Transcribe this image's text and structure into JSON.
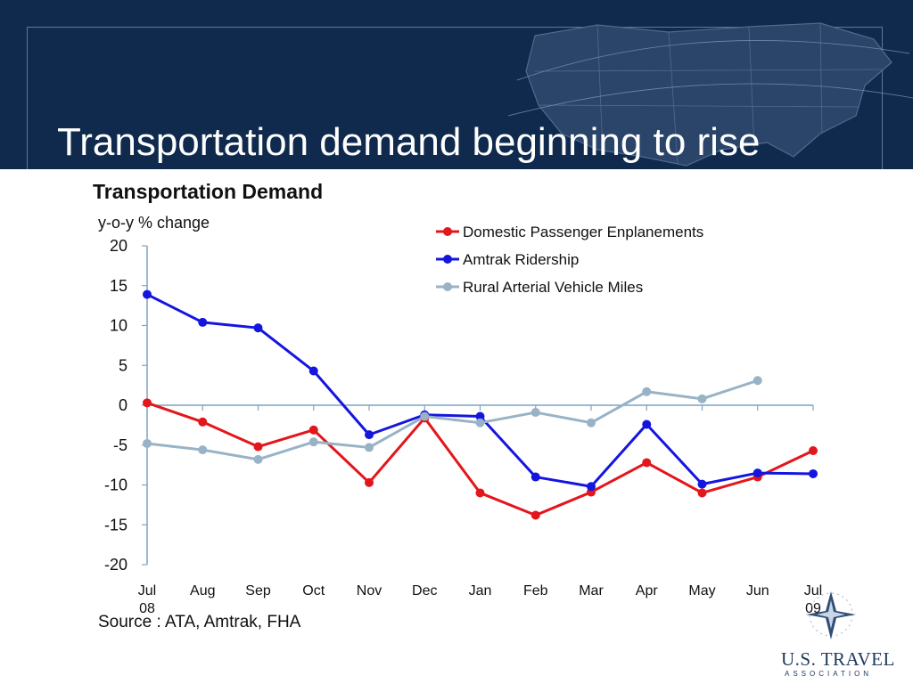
{
  "slide": {
    "title": "Transportation demand beginning to rise",
    "source": "Source : ATA, Amtrak, FHA",
    "logo_text": "U.S. TRAVEL",
    "logo_subtext": "ASSOCIATION"
  },
  "colors": {
    "banner": "#0f2a4d",
    "domestic": "#e3161b",
    "amtrak": "#1515e0",
    "rural": "#98b3c6"
  },
  "chart_data": {
    "type": "line",
    "title": "Transportation Demand",
    "ylabel": "y-o-y % change",
    "xlabel": "",
    "ylim": [
      -20,
      20
    ],
    "yticks": [
      20,
      15,
      10,
      5,
      0,
      -5,
      -10,
      -15,
      -20
    ],
    "categories": [
      "Jul 08",
      "Aug",
      "Sep",
      "Oct",
      "Nov",
      "Dec",
      "Jan",
      "Feb",
      "Mar",
      "Apr",
      "May",
      "Jun",
      "Jul 09"
    ],
    "category_labels": [
      [
        "Jul",
        "08"
      ],
      [
        "Aug"
      ],
      [
        "Sep"
      ],
      [
        "Oct"
      ],
      [
        "Nov"
      ],
      [
        "Dec"
      ],
      [
        "Jan"
      ],
      [
        "Feb"
      ],
      [
        "Mar"
      ],
      [
        "Apr"
      ],
      [
        "May"
      ],
      [
        "Jun"
      ],
      [
        "Jul",
        "09"
      ]
    ],
    "grid": false,
    "legend_position": "top-right",
    "series": [
      {
        "name": "Domestic Passenger Enplanements",
        "color": "#e3161b",
        "values": [
          0.3,
          -2.1,
          -5.2,
          -3.1,
          -9.7,
          -1.6,
          -11.0,
          -13.8,
          -10.9,
          -7.2,
          -11.0,
          -9.0,
          -5.7
        ]
      },
      {
        "name": "Amtrak Ridership",
        "color": "#1515e0",
        "values": [
          13.9,
          10.4,
          9.7,
          4.3,
          -3.7,
          -1.2,
          -1.4,
          -9.0,
          -10.2,
          -2.4,
          -9.9,
          -8.5,
          -8.6
        ]
      },
      {
        "name": "Rural Arterial Vehicle Miles",
        "color": "#98b3c6",
        "values": [
          -4.8,
          -5.6,
          -6.8,
          -4.6,
          -5.3,
          -1.4,
          -2.2,
          -0.9,
          -2.2,
          1.7,
          0.8,
          3.1,
          null
        ]
      }
    ]
  }
}
